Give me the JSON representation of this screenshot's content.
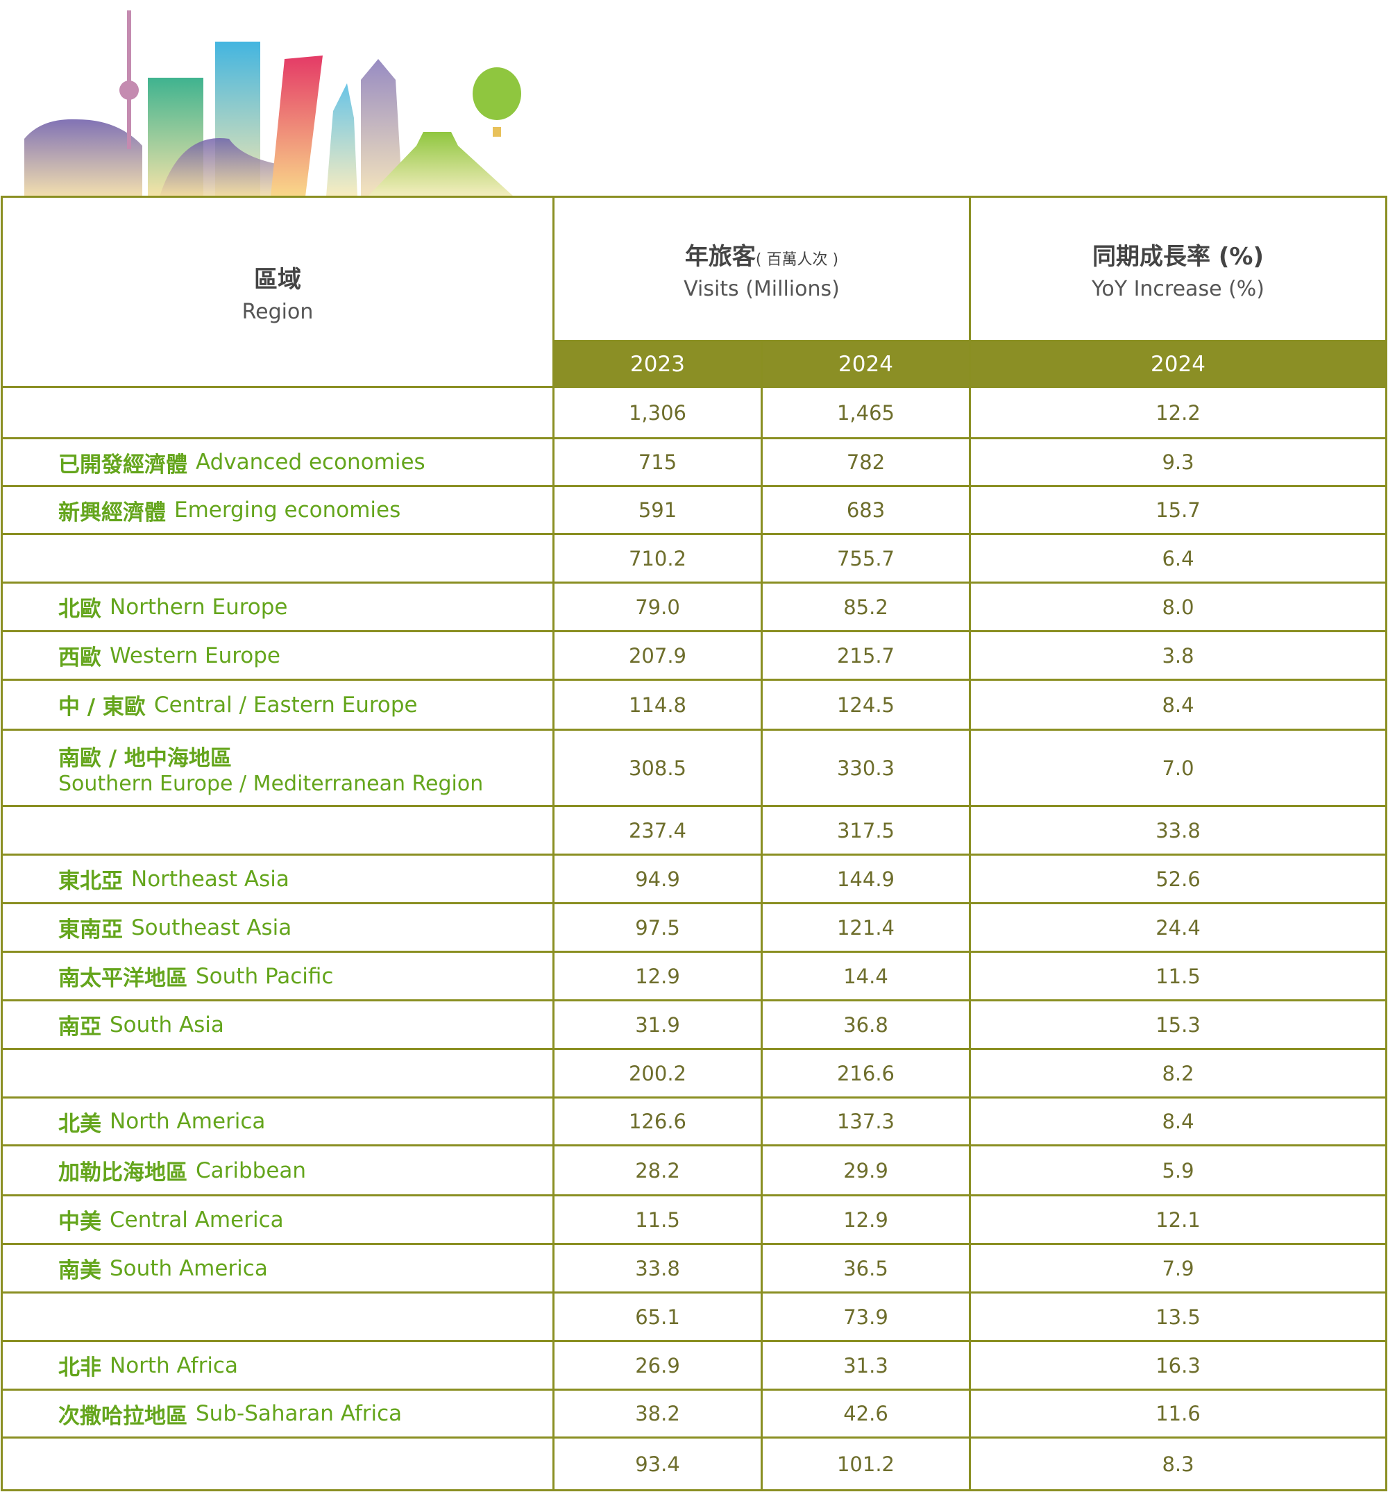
{
  "header": {
    "region_zh": "區域",
    "region_en": "Region",
    "visits_zh": "年旅客",
    "visits_unit": "( 百萬人次 )",
    "visits_en": "Visits (Millions)",
    "yoy_zh": "同期成長率 (%)",
    "yoy_en": "YoY Increase (%)",
    "years": [
      "2023",
      "2024",
      "2024"
    ]
  },
  "rows": [
    {
      "region_zh": null,
      "region_en": null,
      "v2023": "1,306",
      "v2024": "1,465",
      "yoy": "12.2"
    },
    {
      "region_zh": "已開發經濟體",
      "region_en": "Advanced economies",
      "v2023": "715",
      "v2024": "782",
      "yoy": "9.3"
    },
    {
      "region_zh": "新興經濟體",
      "region_en": "Emerging economies",
      "v2023": "591",
      "v2024": "683",
      "yoy": "15.7"
    },
    {
      "region_zh": null,
      "region_en": null,
      "v2023": "710.2",
      "v2024": "755.7",
      "yoy": "6.4"
    },
    {
      "region_zh": "北歐",
      "region_en": "Northern Europe",
      "v2023": "79.0",
      "v2024": "85.2",
      "yoy": "8.0"
    },
    {
      "region_zh": "西歐",
      "region_en": "Western Europe",
      "v2023": "207.9",
      "v2024": "215.7",
      "yoy": "3.8"
    },
    {
      "region_zh": "中 / 東歐",
      "region_en": "Central / Eastern Europe",
      "v2023": "114.8",
      "v2024": "124.5",
      "yoy": "8.4"
    },
    {
      "region_zh": "南歐 / 地中海地區",
      "region_en": "Southern Europe / Mediterranean Region",
      "v2023": "308.5",
      "v2024": "330.3",
      "yoy": "7.0",
      "stacked": true
    },
    {
      "region_zh": null,
      "region_en": null,
      "v2023": "237.4",
      "v2024": "317.5",
      "yoy": "33.8"
    },
    {
      "region_zh": "東北亞",
      "region_en": "Northeast Asia",
      "v2023": "94.9",
      "v2024": "144.9",
      "yoy": "52.6"
    },
    {
      "region_zh": "東南亞",
      "region_en": "Southeast Asia",
      "v2023": "97.5",
      "v2024": "121.4",
      "yoy": "24.4"
    },
    {
      "region_zh": "南太平洋地區",
      "region_en": "South Pacific",
      "v2023": "12.9",
      "v2024": "14.4",
      "yoy": "11.5"
    },
    {
      "region_zh": "南亞",
      "region_en": "South Asia",
      "v2023": "31.9",
      "v2024": "36.8",
      "yoy": "15.3"
    },
    {
      "region_zh": null,
      "region_en": null,
      "v2023": "200.2",
      "v2024": "216.6",
      "yoy": "8.2"
    },
    {
      "region_zh": "北美",
      "region_en": "North America",
      "v2023": "126.6",
      "v2024": "137.3",
      "yoy": "8.4"
    },
    {
      "region_zh": "加勒比海地區",
      "region_en": "Caribbean",
      "v2023": "28.2",
      "v2024": "29.9",
      "yoy": "5.9"
    },
    {
      "region_zh": "中美",
      "region_en": "Central America",
      "v2023": "11.5",
      "v2024": "12.9",
      "yoy": "12.1"
    },
    {
      "region_zh": "南美",
      "region_en": "South America",
      "v2023": "33.8",
      "v2024": "36.5",
      "yoy": "7.9"
    },
    {
      "region_zh": null,
      "region_en": null,
      "v2023": "65.1",
      "v2024": "73.9",
      "yoy": "13.5"
    },
    {
      "region_zh": "北非",
      "region_en": "North Africa",
      "v2023": "26.9",
      "v2024": "31.3",
      "yoy": "16.3"
    },
    {
      "region_zh": "次撒哈拉地區",
      "region_en": "Sub-Saharan Africa",
      "v2023": "38.2",
      "v2024": "42.6",
      "yoy": "11.6"
    },
    {
      "region_zh": null,
      "region_en": null,
      "v2023": "93.4",
      "v2024": "101.2",
      "yoy": "8.3"
    }
  ]
}
